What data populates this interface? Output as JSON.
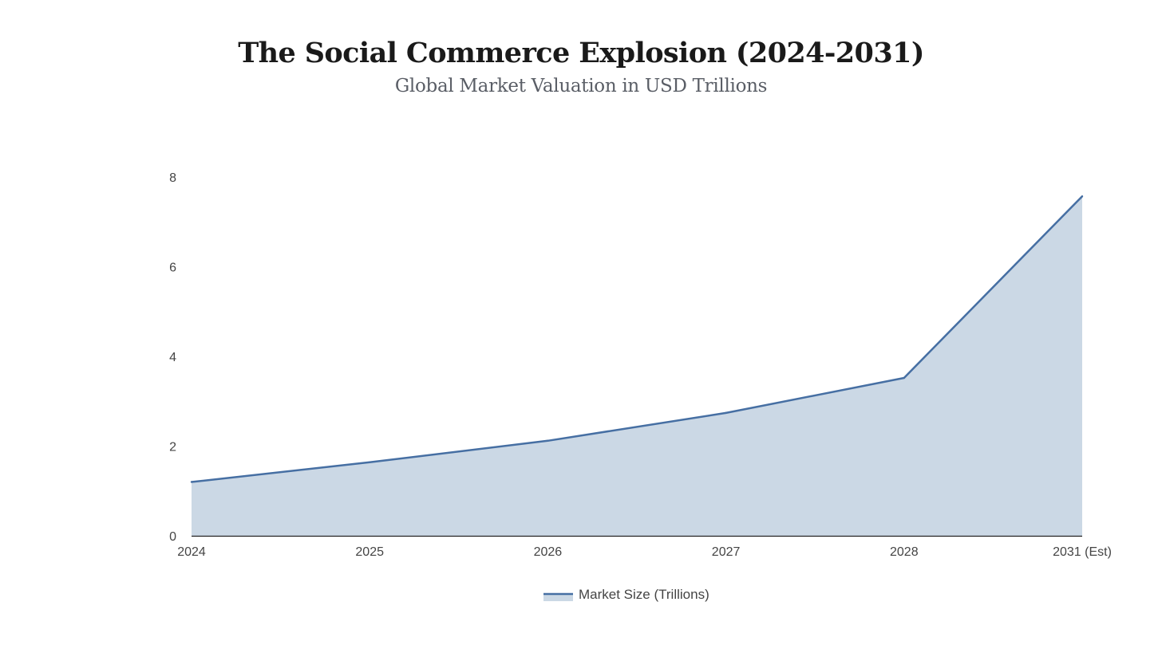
{
  "chart_data": {
    "type": "area",
    "title": "The Social Commerce Explosion (2024-2031)",
    "subtitle": "Global Market Valuation in USD Trillions",
    "categories": [
      "2024",
      "2025",
      "2026",
      "2027",
      "2028",
      "2031 (Est)"
    ],
    "series": [
      {
        "name": "Market Size (Trillions)",
        "values": [
          1.2,
          1.64,
          2.12,
          2.74,
          3.52,
          7.57
        ],
        "line_color": "#466fa3",
        "fill_color": "#cbd8e5"
      }
    ],
    "ylim": [
      0,
      8
    ],
    "yticks": [
      0,
      2,
      4,
      6,
      8
    ],
    "xlabel": "",
    "ylabel": "",
    "grid": false,
    "legend_position": "bottom-center"
  }
}
